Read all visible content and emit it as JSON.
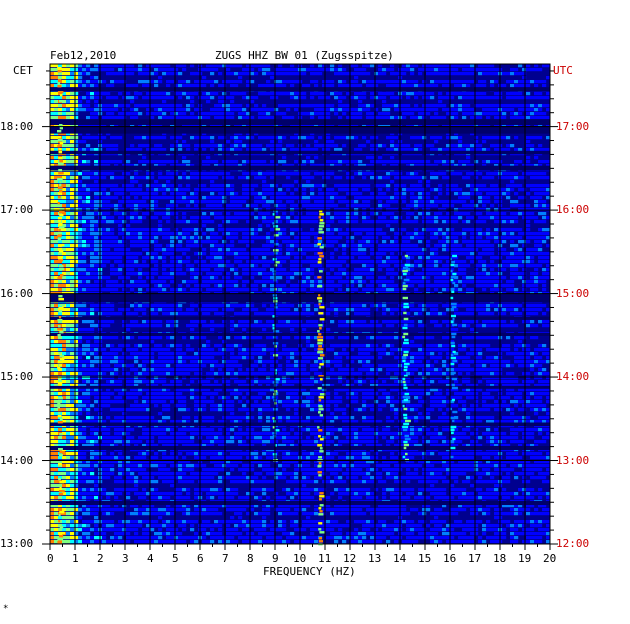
{
  "header": {
    "date": "Feb12,2010",
    "station": "ZUGS HHZ BW 01 (Zugsspitze)",
    "left_timezone": "CET",
    "right_timezone": "UTC"
  },
  "corner_mark": "*",
  "colors": {
    "background": "#00008f",
    "grid": "#000000",
    "utc_label": "#cc0000",
    "ramp": [
      "#00008f",
      "#0000ff",
      "#0080ff",
      "#00ffff",
      "#80ff80",
      "#ffff00",
      "#ff8000",
      "#ff0000"
    ]
  },
  "chart_data": {
    "type": "heatmap",
    "title": "ZUGS HHZ BW 01 (Zugsspitze)",
    "xlabel": "FREQUENCY (HZ)",
    "ylabel_left": "CET",
    "ylabel_right": "UTC",
    "x_range": [
      0,
      20
    ],
    "x_ticks": [
      "0",
      "1",
      "2",
      "3",
      "4",
      "5",
      "6",
      "7",
      "8",
      "9",
      "10",
      "11",
      "12",
      "13",
      "14",
      "15",
      "16",
      "17",
      "18",
      "19",
      "20"
    ],
    "y_ticks_cet": [
      "18:00",
      "17:00",
      "16:00",
      "15:00",
      "14:00",
      "13:00"
    ],
    "y_ticks_utc": [
      "17:00",
      "16:00",
      "15:00",
      "14:00",
      "13:00",
      "12:00"
    ],
    "time_range_cet": [
      "13:00",
      "18:45"
    ],
    "grid": true,
    "bands": [
      {
        "freq_hz": 0.4,
        "intensity": "high",
        "note": "microseism energy 0–1 Hz throughout"
      },
      {
        "freq_hz": 9.0,
        "intensity": "medium",
        "start": "14:00",
        "end": "17:00"
      },
      {
        "freq_hz": 10.8,
        "intensity": "high",
        "start": "13:00",
        "end": "17:00"
      },
      {
        "freq_hz": 14.2,
        "intensity": "medium",
        "start": "14:00",
        "end": "16:30"
      },
      {
        "freq_hz": 16.1,
        "intensity": "low",
        "start": "14:00",
        "end": "16:30"
      }
    ]
  }
}
